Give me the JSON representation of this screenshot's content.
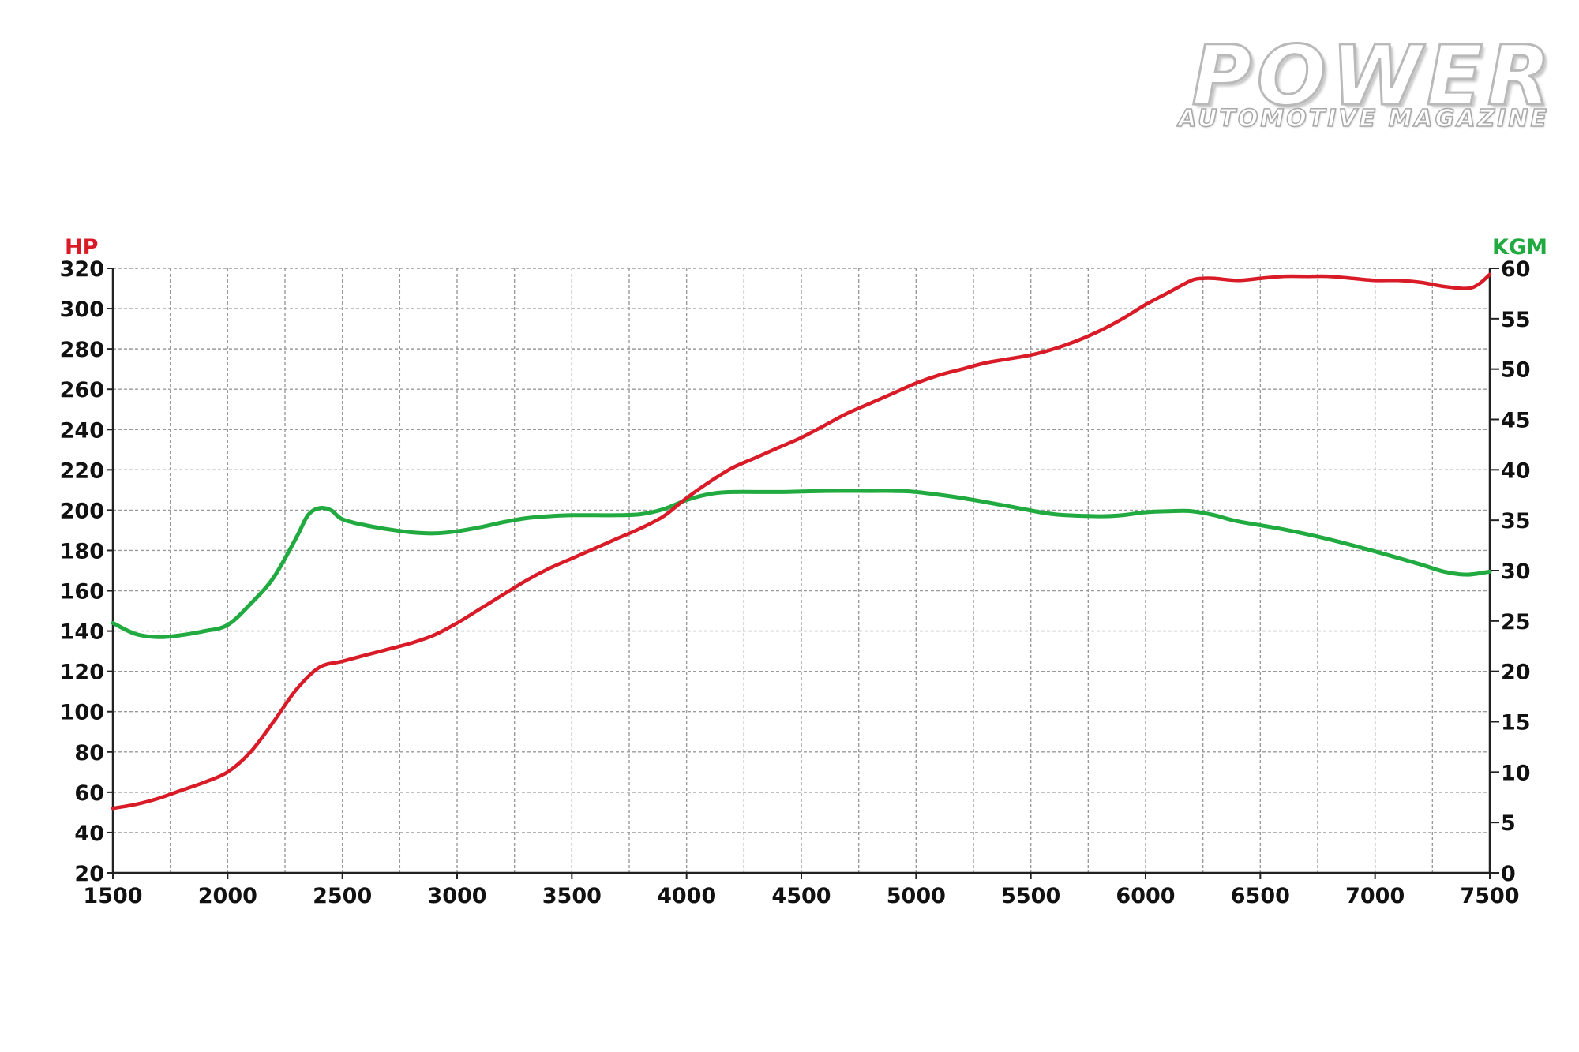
{
  "logo": {
    "title": "POWER",
    "subtitle": "AUTOMOTIVE MAGAZINE"
  },
  "colors": {
    "hp": "#d81b26",
    "kgm": "#21aa40",
    "grid": "#9a9a9a",
    "axis": "#222222"
  },
  "chart_data": {
    "type": "line",
    "ylabel_left": "HP",
    "ylabel_right": "KGM",
    "xlim": [
      1500,
      7500
    ],
    "ylim_left": [
      20,
      320
    ],
    "ylim_right": [
      0,
      60
    ],
    "x_ticks": [
      1500,
      2000,
      2500,
      3000,
      3500,
      4000,
      4500,
      5000,
      5500,
      6000,
      6500,
      7000,
      7500
    ],
    "y_ticks_left": [
      20,
      40,
      60,
      80,
      100,
      120,
      140,
      160,
      180,
      200,
      220,
      240,
      260,
      280,
      300,
      320
    ],
    "y_ticks_right": [
      0,
      5,
      10,
      15,
      20,
      25,
      30,
      35,
      40,
      45,
      50,
      55,
      60
    ],
    "grid": true,
    "series": [
      {
        "name": "HP",
        "axis": "left",
        "x": [
          1500,
          1600,
          1700,
          1800,
          1900,
          2000,
          2100,
          2200,
          2300,
          2400,
          2500,
          2600,
          2700,
          2800,
          2900,
          3000,
          3100,
          3200,
          3300,
          3400,
          3500,
          3600,
          3700,
          3800,
          3900,
          4000,
          4100,
          4200,
          4300,
          4400,
          4500,
          4600,
          4700,
          4800,
          4900,
          5000,
          5100,
          5200,
          5300,
          5400,
          5500,
          5600,
          5700,
          5800,
          5900,
          6000,
          6100,
          6200,
          6250,
          6300,
          6400,
          6500,
          6600,
          6700,
          6800,
          6900,
          7000,
          7100,
          7200,
          7300,
          7400,
          7450,
          7500
        ],
        "y": [
          52,
          54,
          57,
          61,
          65,
          70,
          80,
          95,
          111,
          122,
          125,
          128,
          131,
          134,
          138,
          144,
          151,
          158,
          165,
          171,
          176,
          181,
          186,
          191,
          197,
          206,
          214,
          221,
          226,
          231,
          236,
          242,
          248,
          253,
          258,
          263,
          267,
          270,
          273,
          275,
          277,
          280,
          284,
          289,
          295,
          302,
          308,
          314,
          315,
          315,
          314,
          315,
          316,
          316,
          316,
          315,
          314,
          314,
          313,
          311,
          310,
          312,
          317
        ]
      },
      {
        "name": "KGM",
        "axis": "right",
        "x": [
          1500,
          1600,
          1700,
          1800,
          1900,
          2000,
          2100,
          2200,
          2300,
          2350,
          2400,
          2450,
          2500,
          2600,
          2700,
          2800,
          2900,
          3000,
          3100,
          3200,
          3300,
          3400,
          3500,
          3600,
          3700,
          3800,
          3900,
          4000,
          4100,
          4200,
          4400,
          4600,
          4800,
          4900,
          5000,
          5200,
          5400,
          5600,
          5800,
          5900,
          6000,
          6100,
          6200,
          6300,
          6400,
          6600,
          6800,
          7000,
          7200,
          7300,
          7400,
          7500
        ],
        "y": [
          24.8,
          23.7,
          23.4,
          23.6,
          24.0,
          24.6,
          26.7,
          29.3,
          33.3,
          35.5,
          36.2,
          36.0,
          35.1,
          34.5,
          34.1,
          33.8,
          33.7,
          33.9,
          34.3,
          34.8,
          35.2,
          35.4,
          35.5,
          35.5,
          35.5,
          35.6,
          36.1,
          37.0,
          37.6,
          37.8,
          37.8,
          37.9,
          37.9,
          37.9,
          37.8,
          37.2,
          36.4,
          35.6,
          35.4,
          35.5,
          35.8,
          35.9,
          35.9,
          35.5,
          34.9,
          34.1,
          33.1,
          31.9,
          30.6,
          29.9,
          29.6,
          29.9
        ]
      }
    ]
  }
}
